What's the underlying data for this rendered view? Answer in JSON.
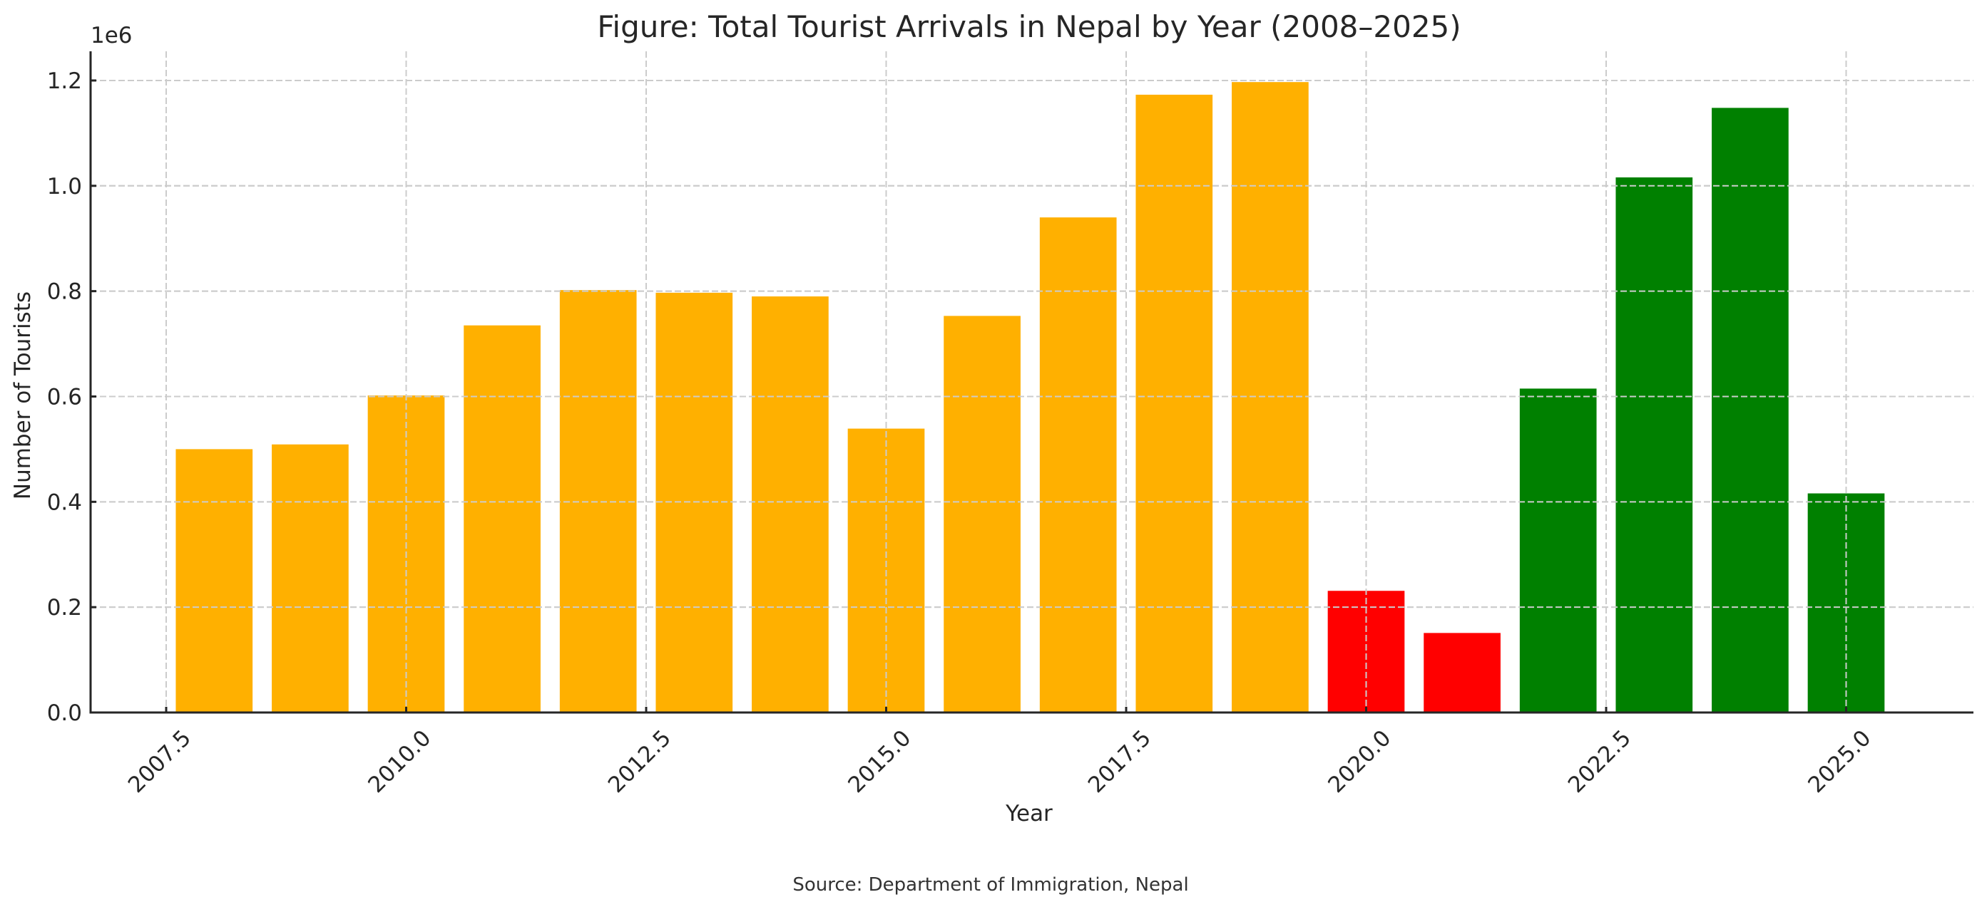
{
  "chart_data": {
    "type": "bar",
    "title": "Figure: Total Tourist Arrivals in Nepal by Year (2008–2025)",
    "xlabel": "Year",
    "ylabel": "Number of Tourists",
    "y_offset_label": "1e6",
    "source": "Source: Department of Immigration, Nepal",
    "x": [
      2008,
      2009,
      2010,
      2011,
      2012,
      2013,
      2014,
      2015,
      2016,
      2017,
      2018,
      2019,
      2020,
      2021,
      2022,
      2023,
      2024,
      2025
    ],
    "values": [
      500000,
      509000,
      602000,
      735000,
      802000,
      797000,
      790000,
      539000,
      753000,
      940000,
      1173000,
      1197000,
      231000,
      151000,
      615000,
      1016000,
      1148000,
      416000
    ],
    "bar_colors": [
      "#FFB000",
      "#FFB000",
      "#FFB000",
      "#FFB000",
      "#FFB000",
      "#FFB000",
      "#FFB000",
      "#FFB000",
      "#FFB000",
      "#FFB000",
      "#FFB000",
      "#FFB000",
      "#FF0000",
      "#FF0000",
      "#008000",
      "#008000",
      "#008000",
      "#008000"
    ],
    "x_ticks": [
      2007.5,
      2010.0,
      2012.5,
      2015.0,
      2017.5,
      2020.0,
      2022.5,
      2025.0
    ],
    "x_tick_labels": [
      "2007.5",
      "2010.0",
      "2012.5",
      "2015.0",
      "2017.5",
      "2020.0",
      "2022.5",
      "2025.0"
    ],
    "y_ticks": [
      0,
      200000,
      400000,
      600000,
      800000,
      1000000,
      1200000
    ],
    "y_tick_labels": [
      "0.0",
      "0.2",
      "0.4",
      "0.6",
      "0.8",
      "1.0",
      "1.2"
    ],
    "xlim": [
      2007.05,
      2026.25
    ],
    "ylim": [
      0,
      1257000
    ],
    "bar_width": 0.8,
    "grid": true,
    "grid_style": "dashed",
    "legend": null,
    "colors": {
      "pre_pandemic": "#FFB000",
      "pandemic": "#FF0000",
      "recovery": "#008000",
      "grid": "#cccccc",
      "axis": "#262626"
    }
  }
}
